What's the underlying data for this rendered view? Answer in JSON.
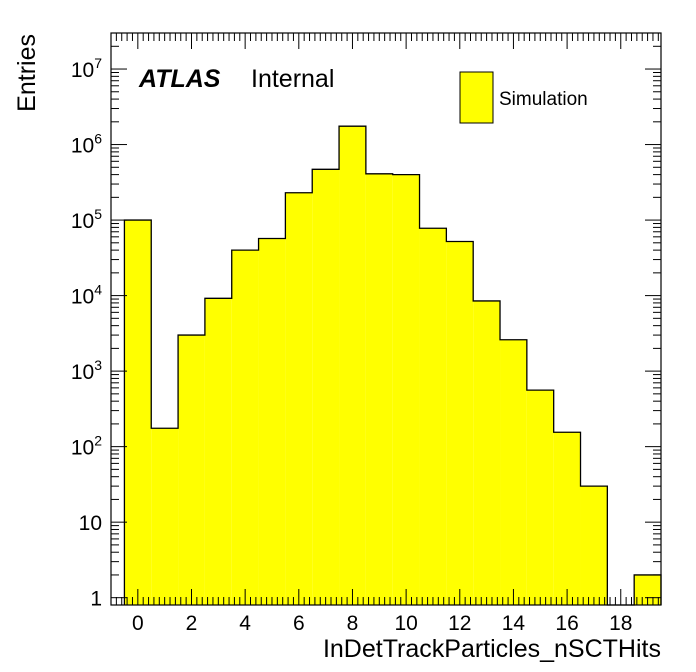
{
  "chart_data": {
    "type": "bar",
    "histogram": true,
    "x": [
      0,
      1,
      2,
      3,
      4,
      5,
      6,
      7,
      8,
      9,
      10,
      11,
      12,
      13,
      14,
      15,
      16,
      17,
      18,
      19
    ],
    "values": [
      100000,
      175,
      3000,
      9200,
      40000,
      57000,
      230000,
      470000,
      1750000,
      410000,
      400000,
      78000,
      52000,
      8500,
      2600,
      560,
      155,
      30,
      0,
      2
    ],
    "xlabel": "InDetTrackParticles_nSCTHits",
    "ylabel": "Entries",
    "xlim": [
      -1,
      19.5
    ],
    "ylim": [
      0.8,
      30000000
    ],
    "yscale": "log",
    "x_ticks": [
      "0",
      "2",
      "4",
      "6",
      "8",
      "10",
      "12",
      "14",
      "16",
      "18"
    ],
    "y_ticks": [
      {
        "base": "1",
        "exp": ""
      },
      {
        "base": "10",
        "exp": ""
      },
      {
        "base": "10",
        "exp": "2"
      },
      {
        "base": "10",
        "exp": "3"
      },
      {
        "base": "10",
        "exp": "4"
      },
      {
        "base": "10",
        "exp": "5"
      },
      {
        "base": "10",
        "exp": "6"
      },
      {
        "base": "10",
        "exp": "7"
      }
    ],
    "fill_color": "#ffff00",
    "line_color": "#000000",
    "label_bold": "ATLAS",
    "label_text": "Internal",
    "legend": {
      "entry": "Simulation",
      "position": "top-right"
    },
    "grid": false
  }
}
